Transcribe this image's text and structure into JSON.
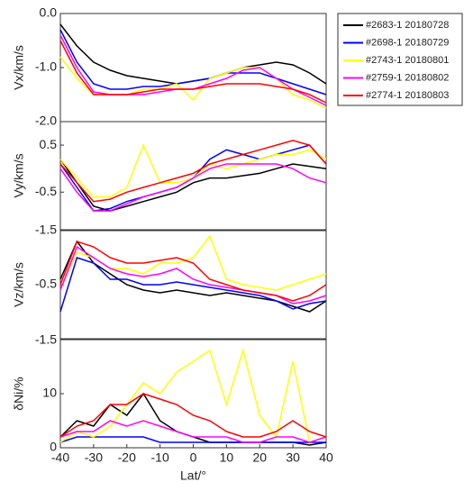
{
  "chart_data": [
    {
      "type": "line",
      "ylabel": "Vx/km/s",
      "ylim": [
        -2,
        0
      ],
      "yticks": [
        {
          "value": 0,
          "label": "0.0"
        },
        {
          "value": -1,
          "label": "-1.0"
        },
        {
          "value": -2,
          "label": "-2.0"
        }
      ],
      "x": [
        -40,
        -35,
        -30,
        -25,
        -20,
        -15,
        -10,
        -5,
        0,
        5,
        10,
        15,
        20,
        25,
        30,
        35,
        40
      ],
      "series": [
        {
          "name": "#2683-1 20180728",
          "color": "#000000",
          "values": [
            -0.2,
            -0.6,
            -0.9,
            -1.05,
            -1.15,
            -1.2,
            -1.25,
            -1.3,
            -1.25,
            -1.2,
            -1.1,
            -1.0,
            -0.95,
            -0.9,
            -0.95,
            -1.1,
            -1.3
          ]
        },
        {
          "name": "#2698-1 20180729",
          "color": "#0000ff",
          "values": [
            -0.3,
            -0.9,
            -1.3,
            -1.4,
            -1.4,
            -1.35,
            -1.35,
            -1.3,
            -1.25,
            -1.2,
            -1.1,
            -1.1,
            -1.1,
            -1.2,
            -1.3,
            -1.4,
            -1.5
          ]
        },
        {
          "name": "#2743-1 20180801",
          "color": "#ffff00",
          "values": [
            -0.8,
            -1.2,
            -1.5,
            -1.5,
            -1.5,
            -1.4,
            -1.4,
            -1.3,
            -1.6,
            -1.2,
            -1.1,
            -1.0,
            -1.0,
            -1.2,
            -1.5,
            -1.6,
            -1.75
          ]
        },
        {
          "name": "#2759-1 20180802",
          "color": "#ff00ff",
          "values": [
            -0.4,
            -1.0,
            -1.45,
            -1.5,
            -1.5,
            -1.5,
            -1.45,
            -1.4,
            -1.4,
            -1.3,
            -1.2,
            -1.05,
            -1.0,
            -1.2,
            -1.4,
            -1.55,
            -1.7
          ]
        },
        {
          "name": "#2774-1 20180803",
          "color": "#ff0000",
          "values": [
            -0.5,
            -1.1,
            -1.5,
            -1.5,
            -1.5,
            -1.45,
            -1.4,
            -1.4,
            -1.4,
            -1.35,
            -1.3,
            -1.3,
            -1.3,
            -1.35,
            -1.4,
            -1.5,
            -1.65
          ]
        }
      ]
    },
    {
      "type": "line",
      "ylabel": "Vy/km/s",
      "ylim": [
        -1.3,
        1.0
      ],
      "yticks": [
        -0.5,
        0.5
      ],
      "x": [
        -40,
        -35,
        -30,
        -25,
        -20,
        -15,
        -10,
        -5,
        0,
        5,
        10,
        15,
        20,
        25,
        30,
        35,
        40
      ],
      "series": [
        {
          "color": "#000000",
          "values": [
            0.2,
            -0.3,
            -0.8,
            -0.9,
            -0.8,
            -0.7,
            -0.6,
            -0.5,
            -0.3,
            -0.2,
            -0.2,
            -0.15,
            -0.1,
            0.0,
            0.1,
            0.05,
            0.0
          ]
        },
        {
          "color": "#0000ff",
          "values": [
            0.1,
            -0.4,
            -0.9,
            -0.85,
            -0.7,
            -0.6,
            -0.5,
            -0.4,
            -0.2,
            0.2,
            0.4,
            0.3,
            0.2,
            0.3,
            0.4,
            0.5,
            0.1
          ]
        },
        {
          "color": "#ffff00",
          "values": [
            0.2,
            -0.2,
            -0.6,
            -0.6,
            -0.4,
            0.5,
            -0.3,
            -0.3,
            -0.2,
            0.1,
            0.0,
            0.1,
            0.2,
            0.3,
            0.3,
            0.4,
            0.2
          ]
        },
        {
          "color": "#ff00ff",
          "values": [
            0.0,
            -0.5,
            -0.9,
            -0.9,
            -0.75,
            -0.6,
            -0.5,
            -0.4,
            -0.2,
            0.0,
            0.1,
            0.1,
            0.1,
            0.1,
            0.0,
            -0.2,
            -0.3
          ]
        },
        {
          "color": "#ff0000",
          "values": [
            0.1,
            -0.3,
            -0.7,
            -0.65,
            -0.5,
            -0.4,
            -0.3,
            -0.2,
            -0.1,
            0.1,
            0.2,
            0.3,
            0.4,
            0.5,
            0.6,
            0.5,
            0.1
          ]
        }
      ]
    },
    {
      "type": "line",
      "ylabel": "Vz/km/s",
      "ylim": [
        -1.5,
        0.5
      ],
      "yreverse": true,
      "yticks": [
        -1.5,
        -0.5
      ],
      "x": [
        -40,
        -35,
        -30,
        -25,
        -20,
        -15,
        -10,
        -5,
        0,
        5,
        10,
        15,
        20,
        25,
        30,
        35,
        40
      ],
      "series": [
        {
          "color": "#000000",
          "values": [
            -0.6,
            -1.3,
            -0.9,
            -0.7,
            -0.5,
            -0.4,
            -0.35,
            -0.4,
            -0.35,
            -0.3,
            -0.35,
            -0.3,
            -0.25,
            -0.2,
            -0.1,
            0.0,
            -0.2
          ]
        },
        {
          "color": "#0000ff",
          "values": [
            0.0,
            -1.0,
            -0.9,
            -0.6,
            -0.6,
            -0.5,
            -0.5,
            -0.55,
            -0.5,
            -0.45,
            -0.4,
            -0.35,
            -0.3,
            -0.2,
            -0.05,
            -0.15,
            -0.2
          ]
        },
        {
          "color": "#ffff00",
          "values": [
            -0.4,
            -1.1,
            -1.0,
            -0.8,
            -0.8,
            -0.7,
            -0.9,
            -0.9,
            -1.0,
            -1.4,
            -0.6,
            -0.5,
            -0.45,
            -0.4,
            -0.5,
            -0.6,
            -0.7
          ]
        },
        {
          "color": "#ff00ff",
          "values": [
            -0.4,
            -1.2,
            -1.0,
            -0.8,
            -0.7,
            -0.65,
            -0.7,
            -0.8,
            -0.6,
            -0.5,
            -0.45,
            -0.4,
            -0.35,
            -0.3,
            -0.15,
            -0.2,
            -0.3
          ]
        },
        {
          "color": "#ff0000",
          "values": [
            -0.5,
            -1.3,
            -1.2,
            -1.0,
            -0.9,
            -0.9,
            -0.95,
            -1.0,
            -0.9,
            -0.6,
            -0.5,
            -0.4,
            -0.35,
            -0.3,
            -0.2,
            -0.3,
            -0.5
          ]
        }
      ]
    },
    {
      "type": "line",
      "ylabel": "δNi/%",
      "ylim": [
        0,
        20
      ],
      "yticks": [
        0,
        10
      ],
      "annotation": "-1.5",
      "xlabel": "Lat/°",
      "xlim": [
        -40,
        40
      ],
      "xticks": [
        -40,
        -30,
        -20,
        -10,
        0,
        10,
        20,
        30,
        40
      ],
      "x": [
        -40,
        -35,
        -30,
        -25,
        -20,
        -15,
        -10,
        -5,
        0,
        5,
        10,
        15,
        20,
        25,
        30,
        35,
        40
      ],
      "series": [
        {
          "color": "#000000",
          "values": [
            2,
            5,
            4,
            8,
            6,
            10,
            5,
            3,
            2,
            1,
            1,
            1,
            1,
            1,
            1,
            0.5,
            1
          ]
        },
        {
          "color": "#0000ff",
          "values": [
            1,
            2,
            2,
            2,
            2,
            2,
            1,
            1,
            1,
            1,
            1,
            1,
            1,
            1,
            1,
            1,
            1
          ]
        },
        {
          "color": "#ffff00",
          "values": [
            1,
            3,
            2,
            4,
            8,
            12,
            10,
            14,
            16,
            18,
            8,
            18,
            6,
            2,
            16,
            1,
            2
          ]
        },
        {
          "color": "#ff00ff",
          "values": [
            2,
            3,
            3,
            5,
            4,
            5,
            4,
            3,
            2,
            2,
            2,
            1,
            1,
            2,
            2,
            1,
            2
          ]
        },
        {
          "color": "#ff0000",
          "values": [
            2,
            4,
            5,
            8,
            8,
            10,
            9,
            8,
            6,
            5,
            3,
            2,
            2,
            3,
            5,
            3,
            2
          ]
        }
      ]
    }
  ]
}
